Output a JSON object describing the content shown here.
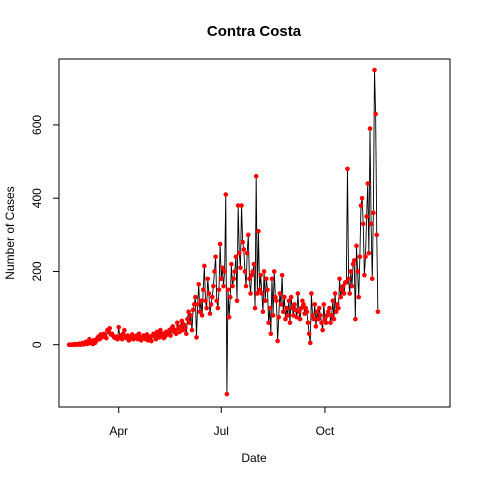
{
  "chart_data": {
    "type": "line",
    "title": "Contra Costa",
    "xlabel": "Date",
    "ylabel": "Number of Cases",
    "x_ticks": [
      {
        "label": "Apr",
        "day": 91
      },
      {
        "label": "Jul",
        "day": 182
      },
      {
        "label": "Oct",
        "day": 274
      }
    ],
    "y_ticks": [
      0,
      200,
      400,
      600
    ],
    "xlim": [
      38,
      385
    ],
    "ylim": [
      -170,
      780
    ],
    "grid": false,
    "legend": "none",
    "series_style": {
      "line_color": "#000000",
      "point_color": "#ff0000"
    },
    "series": [
      {
        "x_day_start": 47,
        "values": [
          0,
          0,
          0,
          0,
          1,
          0,
          2,
          0,
          1,
          3,
          0,
          2,
          5,
          1,
          3,
          8,
          2,
          5,
          15,
          4,
          8,
          2,
          12,
          5,
          10,
          18,
          22,
          15,
          28,
          20,
          25,
          30,
          22,
          18,
          40,
          35,
          45,
          28,
          30,
          25,
          20,
          18,
          22,
          15,
          48,
          20,
          25,
          15,
          30,
          40,
          20,
          18,
          25,
          12,
          15,
          20,
          28,
          15,
          22,
          18,
          25,
          15,
          30,
          20,
          12,
          18,
          25,
          20,
          15,
          28,
          12,
          18,
          22,
          10,
          25,
          30,
          22,
          15,
          35,
          28,
          20,
          40,
          25,
          30,
          18,
          22,
          35,
          28,
          30,
          40,
          25,
          45,
          50,
          35,
          40,
          30,
          60,
          45,
          35,
          50,
          65,
          40,
          55,
          45,
          30,
          70,
          90,
          60,
          80,
          40,
          95,
          110,
          130,
          20,
          110,
          165,
          90,
          120,
          80,
          150,
          215,
          120,
          100,
          180,
          140,
          85,
          110,
          130,
          160,
          200,
          240,
          120,
          100,
          150,
          275,
          180,
          210,
          160,
          200,
          410,
          -135,
          150,
          75,
          130,
          220,
          160,
          180,
          200,
          240,
          120,
          380,
          250,
          210,
          380,
          280,
          260,
          200,
          160,
          250,
          300,
          180,
          140,
          190,
          200,
          220,
          100,
          460,
          140,
          310,
          150,
          190,
          140,
          90,
          200,
          120,
          180,
          150,
          60,
          100,
          30,
          180,
          80,
          200,
          130,
          120,
          10,
          75,
          140,
          110,
          190,
          90,
          130,
          70,
          100,
          80,
          120,
          60,
          130,
          100,
          80,
          110,
          95,
          75,
          140,
          90,
          70,
          100,
          120,
          110,
          85,
          100,
          90,
          60,
          30,
          5,
          140,
          80,
          70,
          110,
          50,
          90,
          70,
          100,
          80,
          60,
          40,
          110,
          70,
          60,
          80,
          90,
          100,
          60,
          80,
          120,
          70,
          140,
          90,
          110,
          100,
          180,
          130,
          150,
          160,
          140,
          170,
          170,
          480,
          180,
          140,
          200,
          160,
          220,
          230,
          70,
          270,
          200,
          130,
          240,
          380,
          400,
          330,
          190,
          240,
          350,
          440,
          250,
          590,
          330,
          180,
          360,
          750,
          630,
          300,
          90
        ]
      }
    ]
  }
}
